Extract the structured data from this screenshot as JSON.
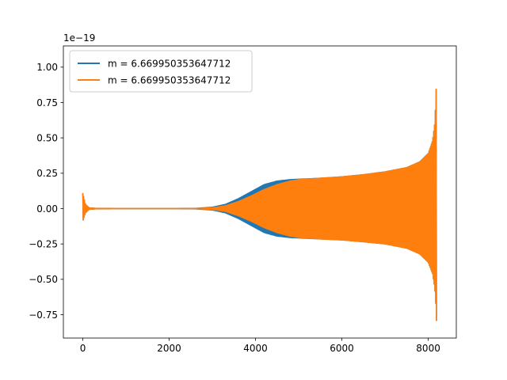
{
  "chart_data": {
    "type": "line",
    "title": "",
    "xlabel": "",
    "ylabel": "",
    "offset_label": "1e−19",
    "xlim": [
      -450,
      8650
    ],
    "ylim": [
      -0.915,
      1.15
    ],
    "xticks": [
      0,
      2000,
      4000,
      6000,
      8000
    ],
    "xtick_labels": [
      "0",
      "2000",
      "4000",
      "6000",
      "8000"
    ],
    "yticks": [
      -0.75,
      -0.5,
      -0.25,
      0.0,
      0.25,
      0.5,
      0.75,
      1.0
    ],
    "ytick_labels": [
      "−0.75",
      "−0.50",
      "−0.25",
      "0.00",
      "0.25",
      "0.50",
      "0.75",
      "1.00"
    ],
    "grid": false,
    "legend_position": "upper left",
    "series": [
      {
        "name": "m = 6.669950353647712",
        "color": "#1f77b4",
        "x": [
          0,
          60,
          150,
          300,
          1000,
          2000,
          2600,
          3000,
          3300,
          3600,
          3900,
          4200,
          4500,
          4800,
          5000,
          5500,
          6000,
          6500,
          7000,
          7500,
          7800,
          8000,
          8100,
          8150,
          8180,
          8195
        ],
        "y_upper": [
          0.11,
          0.03,
          0.005,
          0.002,
          0.001,
          0.001,
          0.002,
          0.01,
          0.03,
          0.07,
          0.12,
          0.17,
          0.195,
          0.205,
          0.208,
          0.215,
          0.225,
          0.24,
          0.26,
          0.29,
          0.33,
          0.39,
          0.48,
          0.6,
          0.8,
          1.05
        ],
        "y_lower": [
          -0.09,
          -0.03,
          -0.005,
          -0.002,
          -0.001,
          -0.001,
          -0.002,
          -0.01,
          -0.03,
          -0.07,
          -0.12,
          -0.17,
          -0.195,
          -0.205,
          -0.208,
          -0.215,
          -0.222,
          -0.235,
          -0.25,
          -0.28,
          -0.32,
          -0.38,
          -0.46,
          -0.56,
          -0.7,
          -0.82
        ]
      },
      {
        "name": "m = 6.669950353647712",
        "color": "#ff7f0e",
        "x": [
          0,
          60,
          150,
          300,
          1000,
          2000,
          2600,
          3000,
          3300,
          3600,
          3900,
          4200,
          4500,
          4800,
          5000,
          5500,
          6000,
          6500,
          7000,
          7500,
          7800,
          8000,
          8100,
          8150,
          8180,
          8195
        ],
        "y_upper": [
          0.11,
          0.03,
          0.005,
          0.002,
          0.001,
          0.001,
          0.001,
          0.006,
          0.02,
          0.05,
          0.09,
          0.135,
          0.17,
          0.195,
          0.205,
          0.215,
          0.225,
          0.24,
          0.26,
          0.29,
          0.33,
          0.39,
          0.48,
          0.6,
          0.8,
          1.05
        ],
        "y_lower": [
          -0.09,
          -0.03,
          -0.005,
          -0.002,
          -0.001,
          -0.001,
          -0.001,
          -0.006,
          -0.02,
          -0.05,
          -0.09,
          -0.135,
          -0.17,
          -0.195,
          -0.205,
          -0.215,
          -0.222,
          -0.235,
          -0.25,
          -0.28,
          -0.32,
          -0.38,
          -0.46,
          -0.56,
          -0.7,
          -0.82
        ]
      }
    ]
  }
}
